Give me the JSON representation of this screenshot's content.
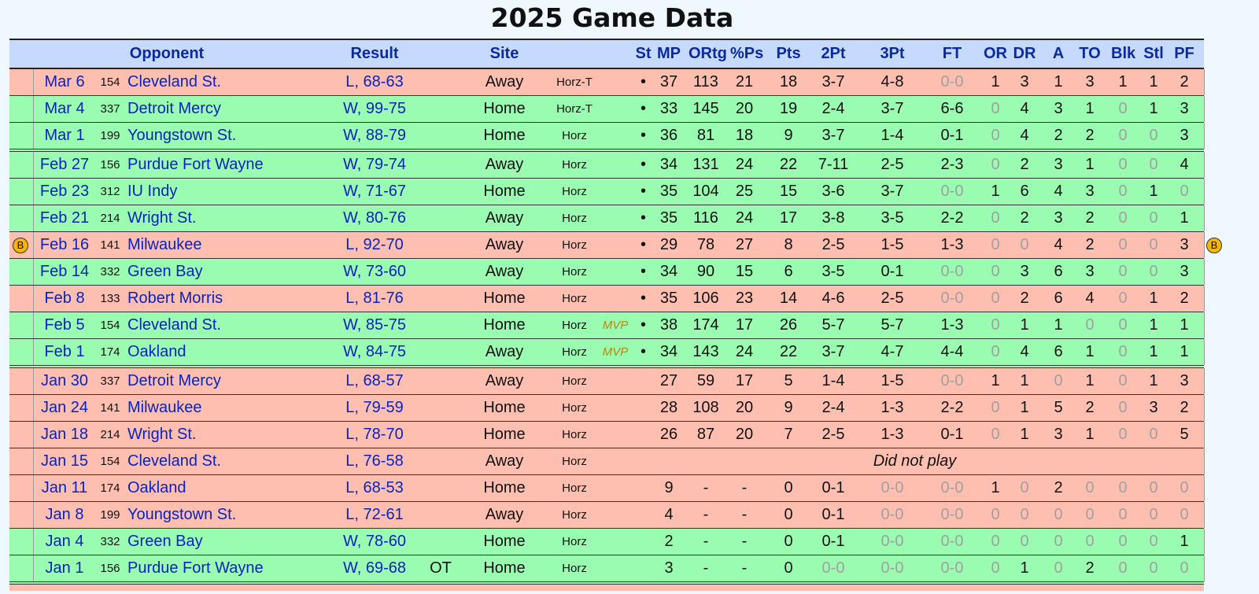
{
  "title": "2025 Game Data",
  "colors": {
    "win_row": "#99fcb0",
    "loss_row": "#ffbfb0",
    "header": "#c6daff",
    "link": "#0a22c0"
  },
  "headers": {
    "opponent": "Opponent",
    "result": "Result",
    "site": "Site",
    "st": "St",
    "mp": "MP",
    "ortg": "ORtg",
    "ps": "%Ps",
    "pts": "Pts",
    "p2": "2Pt",
    "p3": "3Pt",
    "ft": "FT",
    "or": "OR",
    "dr": "DR",
    "a": "A",
    "to": "TO",
    "blk": "Blk",
    "stl": "Stl",
    "pf": "PF"
  },
  "rows": [
    {
      "date": "Mar 6",
      "rank": "154",
      "opp": "Cleveland St.",
      "result": "L, 68-63",
      "ot": "",
      "site": "Away",
      "conf": "Horz-T",
      "mvp": "",
      "st": "•",
      "mp": "37",
      "ortg": "113",
      "ps": "21",
      "pts": "18",
      "p2": "3-7",
      "p3": "4-8",
      "ft": "0-0",
      "or": "1",
      "dr": "3",
      "a": "1",
      "to": "3",
      "blk": "1",
      "stl": "1",
      "pf": "2",
      "win": false
    },
    {
      "date": "Mar 4",
      "rank": "337",
      "opp": "Detroit Mercy",
      "result": "W, 99-75",
      "ot": "",
      "site": "Home",
      "conf": "Horz-T",
      "mvp": "",
      "st": "•",
      "mp": "33",
      "ortg": "145",
      "ps": "20",
      "pts": "19",
      "p2": "2-4",
      "p3": "3-7",
      "ft": "6-6",
      "or": "0",
      "dr": "4",
      "a": "3",
      "to": "1",
      "blk": "0",
      "stl": "1",
      "pf": "3",
      "win": true
    },
    {
      "date": "Mar 1",
      "rank": "199",
      "opp": "Youngstown St.",
      "result": "W, 88-79",
      "ot": "",
      "site": "Home",
      "conf": "Horz",
      "mvp": "",
      "st": "•",
      "mp": "36",
      "ortg": "81",
      "ps": "18",
      "pts": "9",
      "p2": "3-7",
      "p3": "1-4",
      "ft": "0-1",
      "or": "0",
      "dr": "4",
      "a": "2",
      "to": "2",
      "blk": "0",
      "stl": "0",
      "pf": "3",
      "win": true,
      "sep": true
    },
    {
      "date": "Feb 27",
      "rank": "156",
      "opp": "Purdue Fort Wayne",
      "result": "W, 79-74",
      "ot": "",
      "site": "Away",
      "conf": "Horz",
      "mvp": "",
      "st": "•",
      "mp": "34",
      "ortg": "131",
      "ps": "24",
      "pts": "22",
      "p2": "7-11",
      "p3": "2-5",
      "ft": "2-3",
      "or": "0",
      "dr": "2",
      "a": "3",
      "to": "1",
      "blk": "0",
      "stl": "0",
      "pf": "4",
      "win": true
    },
    {
      "date": "Feb 23",
      "rank": "312",
      "opp": "IU Indy",
      "result": "W, 71-67",
      "ot": "",
      "site": "Home",
      "conf": "Horz",
      "mvp": "",
      "st": "•",
      "mp": "35",
      "ortg": "104",
      "ps": "25",
      "pts": "15",
      "p2": "3-6",
      "p3": "3-7",
      "ft": "0-0",
      "or": "1",
      "dr": "6",
      "a": "4",
      "to": "3",
      "blk": "0",
      "stl": "1",
      "pf": "0",
      "win": true
    },
    {
      "date": "Feb 21",
      "rank": "214",
      "opp": "Wright St.",
      "result": "W, 80-76",
      "ot": "",
      "site": "Away",
      "conf": "Horz",
      "mvp": "",
      "st": "•",
      "mp": "35",
      "ortg": "116",
      "ps": "24",
      "pts": "17",
      "p2": "3-8",
      "p3": "3-5",
      "ft": "2-2",
      "or": "0",
      "dr": "2",
      "a": "3",
      "to": "2",
      "blk": "0",
      "stl": "0",
      "pf": "1",
      "win": true
    },
    {
      "date": "Feb 16",
      "rank": "141",
      "opp": "Milwaukee",
      "result": "L, 92-70",
      "ot": "",
      "site": "Away",
      "conf": "Horz",
      "mvp": "",
      "st": "•",
      "mp": "29",
      "ortg": "78",
      "ps": "27",
      "pts": "8",
      "p2": "2-5",
      "p3": "1-5",
      "ft": "1-3",
      "or": "0",
      "dr": "0",
      "a": "4",
      "to": "2",
      "blk": "0",
      "stl": "0",
      "pf": "3",
      "win": false,
      "badge": "B"
    },
    {
      "date": "Feb 14",
      "rank": "332",
      "opp": "Green Bay",
      "result": "W, 73-60",
      "ot": "",
      "site": "Away",
      "conf": "Horz",
      "mvp": "",
      "st": "•",
      "mp": "34",
      "ortg": "90",
      "ps": "15",
      "pts": "6",
      "p2": "3-5",
      "p3": "0-1",
      "ft": "0-0",
      "or": "0",
      "dr": "3",
      "a": "6",
      "to": "3",
      "blk": "0",
      "stl": "0",
      "pf": "3",
      "win": true
    },
    {
      "date": "Feb 8",
      "rank": "133",
      "opp": "Robert Morris",
      "result": "L, 81-76",
      "ot": "",
      "site": "Home",
      "conf": "Horz",
      "mvp": "",
      "st": "•",
      "mp": "35",
      "ortg": "106",
      "ps": "23",
      "pts": "14",
      "p2": "4-6",
      "p3": "2-5",
      "ft": "0-0",
      "or": "0",
      "dr": "2",
      "a": "6",
      "to": "4",
      "blk": "0",
      "stl": "1",
      "pf": "2",
      "win": false
    },
    {
      "date": "Feb 5",
      "rank": "154",
      "opp": "Cleveland St.",
      "result": "W, 85-75",
      "ot": "",
      "site": "Home",
      "conf": "Horz",
      "mvp": "MVP",
      "st": "•",
      "mp": "38",
      "ortg": "174",
      "ps": "17",
      "pts": "26",
      "p2": "5-7",
      "p3": "5-7",
      "ft": "1-3",
      "or": "0",
      "dr": "1",
      "a": "1",
      "to": "0",
      "blk": "0",
      "stl": "1",
      "pf": "1",
      "win": true
    },
    {
      "date": "Feb 1",
      "rank": "174",
      "opp": "Oakland",
      "result": "W, 84-75",
      "ot": "",
      "site": "Away",
      "conf": "Horz",
      "mvp": "MVP",
      "st": "•",
      "mp": "34",
      "ortg": "143",
      "ps": "24",
      "pts": "22",
      "p2": "3-7",
      "p3": "4-7",
      "ft": "4-4",
      "or": "0",
      "dr": "4",
      "a": "6",
      "to": "1",
      "blk": "0",
      "stl": "1",
      "pf": "1",
      "win": true,
      "sep": true
    },
    {
      "date": "Jan 30",
      "rank": "337",
      "opp": "Detroit Mercy",
      "result": "L, 68-57",
      "ot": "",
      "site": "Away",
      "conf": "Horz",
      "mvp": "",
      "st": "",
      "mp": "27",
      "ortg": "59",
      "ps": "17",
      "pts": "5",
      "p2": "1-4",
      "p3": "1-5",
      "ft": "0-0",
      "or": "1",
      "dr": "1",
      "a": "0",
      "to": "1",
      "blk": "0",
      "stl": "1",
      "pf": "3",
      "win": false
    },
    {
      "date": "Jan 24",
      "rank": "141",
      "opp": "Milwaukee",
      "result": "L, 79-59",
      "ot": "",
      "site": "Home",
      "conf": "Horz",
      "mvp": "",
      "st": "",
      "mp": "28",
      "ortg": "108",
      "ps": "20",
      "pts": "9",
      "p2": "2-4",
      "p3": "1-3",
      "ft": "2-2",
      "or": "0",
      "dr": "1",
      "a": "5",
      "to": "2",
      "blk": "0",
      "stl": "3",
      "pf": "2",
      "win": false
    },
    {
      "date": "Jan 18",
      "rank": "214",
      "opp": "Wright St.",
      "result": "L, 78-70",
      "ot": "",
      "site": "Home",
      "conf": "Horz",
      "mvp": "",
      "st": "",
      "mp": "26",
      "ortg": "87",
      "ps": "20",
      "pts": "7",
      "p2": "2-5",
      "p3": "1-3",
      "ft": "0-1",
      "or": "0",
      "dr": "1",
      "a": "3",
      "to": "1",
      "blk": "0",
      "stl": "0",
      "pf": "5",
      "win": false
    },
    {
      "date": "Jan 15",
      "rank": "154",
      "opp": "Cleveland St.",
      "result": "L, 76-58",
      "ot": "",
      "site": "Away",
      "conf": "Horz",
      "mvp": "",
      "dnp": "Did not play",
      "win": false
    },
    {
      "date": "Jan 11",
      "rank": "174",
      "opp": "Oakland",
      "result": "L, 68-53",
      "ot": "",
      "site": "Home",
      "conf": "Horz",
      "mvp": "",
      "st": "",
      "mp": "9",
      "ortg": "-",
      "ps": "-",
      "pts": "0",
      "p2": "0-1",
      "p3": "0-0",
      "ft": "0-0",
      "or": "1",
      "dr": "0",
      "a": "2",
      "to": "0",
      "blk": "0",
      "stl": "0",
      "pf": "0",
      "win": false
    },
    {
      "date": "Jan 8",
      "rank": "199",
      "opp": "Youngstown St.",
      "result": "L, 72-61",
      "ot": "",
      "site": "Away",
      "conf": "Horz",
      "mvp": "",
      "st": "",
      "mp": "4",
      "ortg": "-",
      "ps": "-",
      "pts": "0",
      "p2": "0-1",
      "p3": "0-0",
      "ft": "0-0",
      "or": "0",
      "dr": "0",
      "a": "0",
      "to": "0",
      "blk": "0",
      "stl": "0",
      "pf": "0",
      "win": false
    },
    {
      "date": "Jan 4",
      "rank": "332",
      "opp": "Green Bay",
      "result": "W, 78-60",
      "ot": "",
      "site": "Home",
      "conf": "Horz",
      "mvp": "",
      "st": "",
      "mp": "2",
      "ortg": "-",
      "ps": "-",
      "pts": "0",
      "p2": "0-1",
      "p3": "0-0",
      "ft": "0-0",
      "or": "0",
      "dr": "0",
      "a": "0",
      "to": "0",
      "blk": "0",
      "stl": "0",
      "pf": "1",
      "win": true
    },
    {
      "date": "Jan 1",
      "rank": "156",
      "opp": "Purdue Fort Wayne",
      "result": "W, 69-68",
      "ot": "OT",
      "site": "Home",
      "conf": "Horz",
      "mvp": "",
      "st": "",
      "mp": "3",
      "ortg": "-",
      "ps": "-",
      "pts": "0",
      "p2": "0-0",
      "p3": "0-0",
      "ft": "0-0",
      "or": "0",
      "dr": "1",
      "a": "0",
      "to": "2",
      "blk": "0",
      "stl": "0",
      "pf": "0",
      "win": true,
      "sep": true
    }
  ]
}
